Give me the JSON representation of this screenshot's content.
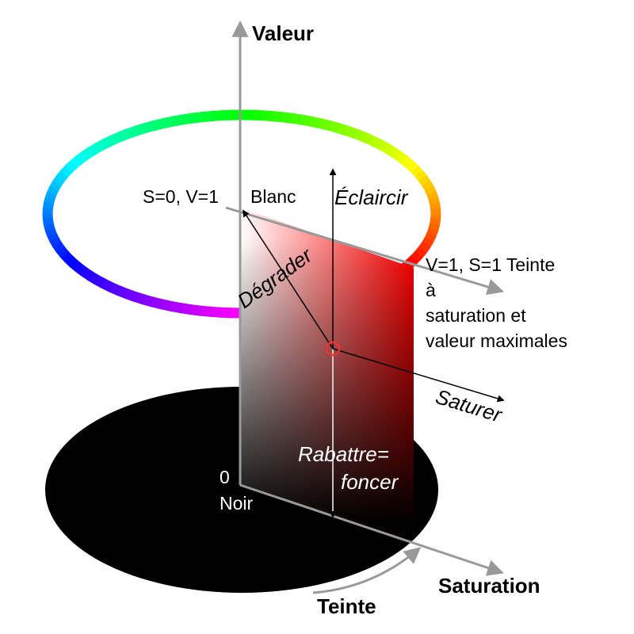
{
  "axes": {
    "value": "Valeur",
    "saturation": "Saturation",
    "hue": "Teinte"
  },
  "points": {
    "white_coords": "S=0, V=1",
    "white_name": "Blanc",
    "black_value": "0",
    "black_name": "Noir",
    "pure_hue": [
      "V=1, S=1 Teinte",
      "à",
      "saturation et",
      "valeur maximales"
    ]
  },
  "operations": {
    "tint": "Éclaircir",
    "tone": "Dégrader",
    "saturate": "Saturer",
    "shade": [
      "Rabattre=",
      "foncer"
    ]
  }
}
